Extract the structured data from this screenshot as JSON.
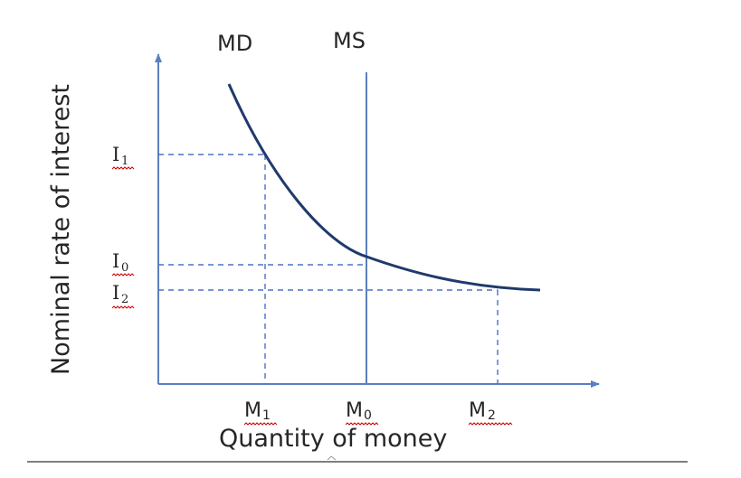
{
  "labels": {
    "md": "MD",
    "ms": "MS",
    "y_axis": "Nominal rate of interest",
    "x_axis": "Quantity of money",
    "i1": "I",
    "i1_sub": "1",
    "i0": "I",
    "i0_sub": "0",
    "i2": "I",
    "i2_sub": "2",
    "m1": "M",
    "m1_sub": "1",
    "m0": "M",
    "m0_sub": "0",
    "m2": "M",
    "m2_sub": "2"
  },
  "colors": {
    "axis": "#5b7fbf",
    "curve": "#1f3a6b",
    "supply": "#5b7fbf",
    "guides": "#4a72c4",
    "text": "#262626",
    "squiggle": "#cc0000",
    "bottom_rule": "#555555"
  }
}
